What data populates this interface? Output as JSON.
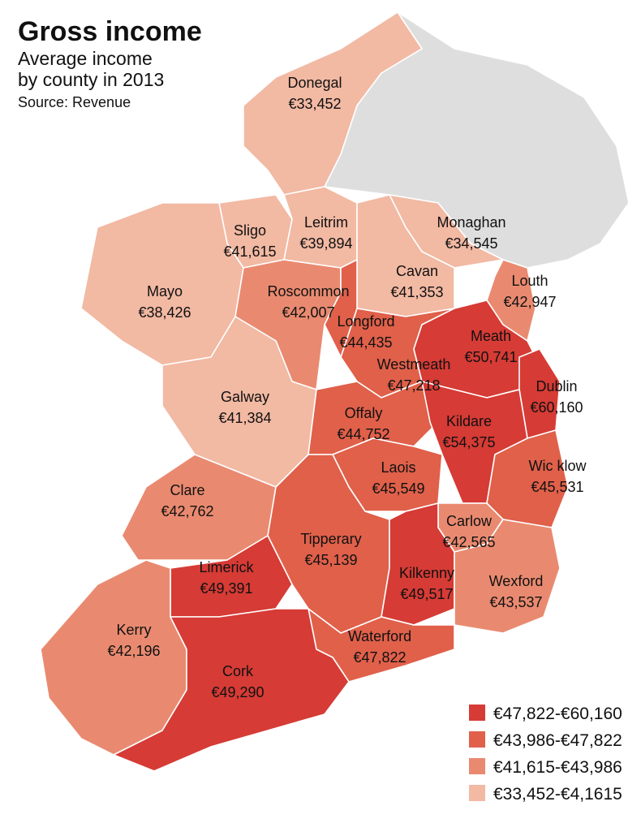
{
  "title": "Gross income",
  "subtitle": [
    "Average income",
    "by county in 2013"
  ],
  "source": "Source: Revenue",
  "legend": [
    {
      "label": "€47,822-€60,160",
      "color": "#d63b35"
    },
    {
      "label": "€43,986-€47,822",
      "color": "#e0604a"
    },
    {
      "label": "€41,615-€43,986",
      "color": "#e98a70"
    },
    {
      "label": "€33,452-€4,1615",
      "color": "#f2b9a3"
    }
  ],
  "counties": [
    {
      "name": "Donegal",
      "value": "€33,452",
      "color": "#f2b9a3"
    },
    {
      "name": "Sligo",
      "value": "€41,615",
      "color": "#f2b9a3"
    },
    {
      "name": "Leitrim",
      "value": "€39,894",
      "color": "#f2b9a3"
    },
    {
      "name": "Monaghan",
      "value": "€34,545",
      "color": "#f2b9a3"
    },
    {
      "name": "Cavan",
      "value": "€41,353",
      "color": "#f2b9a3"
    },
    {
      "name": "Mayo",
      "value": "€38,426",
      "color": "#f2b9a3"
    },
    {
      "name": "Roscommon",
      "value": "€42,007",
      "color": "#e98a70"
    },
    {
      "name": "Louth",
      "value": "€42,947",
      "color": "#e98a70"
    },
    {
      "name": "Westmeath",
      "value": "€47,218",
      "color": "#e0604a"
    },
    {
      "name": "Longford",
      "value": "€44,435",
      "color": "#e0604a"
    },
    {
      "name": "Meath",
      "value": "€50,741",
      "color": "#d63b35"
    },
    {
      "name": "Dublin",
      "value": "€60,160",
      "color": "#d63b35"
    },
    {
      "name": "Galway",
      "value": "€41,384",
      "color": "#f2b9a3"
    },
    {
      "name": "Offaly",
      "value": "€44,752",
      "color": "#e0604a"
    },
    {
      "name": "Kildare",
      "value": "€54,375",
      "color": "#d63b35"
    },
    {
      "name": "Laois",
      "value": "€45,549",
      "color": "#e0604a"
    },
    {
      "name": "Wic klow",
      "value": "€45,531",
      "color": "#e0604a"
    },
    {
      "name": "Carlow",
      "value": "€42,565",
      "color": "#e98a70"
    },
    {
      "name": "Clare",
      "value": "€42,762",
      "color": "#e98a70"
    },
    {
      "name": "Tipperary",
      "value": "€45,139",
      "color": "#e0604a"
    },
    {
      "name": "Kilkenny",
      "value": "€49,517",
      "color": "#d63b35"
    },
    {
      "name": "Wexford",
      "value": "€43,537",
      "color": "#e98a70"
    },
    {
      "name": "Limerick",
      "value": "€49,391",
      "color": "#d63b35"
    },
    {
      "name": "Waterford",
      "value": "€47,822",
      "color": "#e0604a"
    },
    {
      "name": "Kerry",
      "value": "€42,196",
      "color": "#e98a70"
    },
    {
      "name": "Cork",
      "value": "€49,290",
      "color": "#d63b35"
    }
  ]
}
